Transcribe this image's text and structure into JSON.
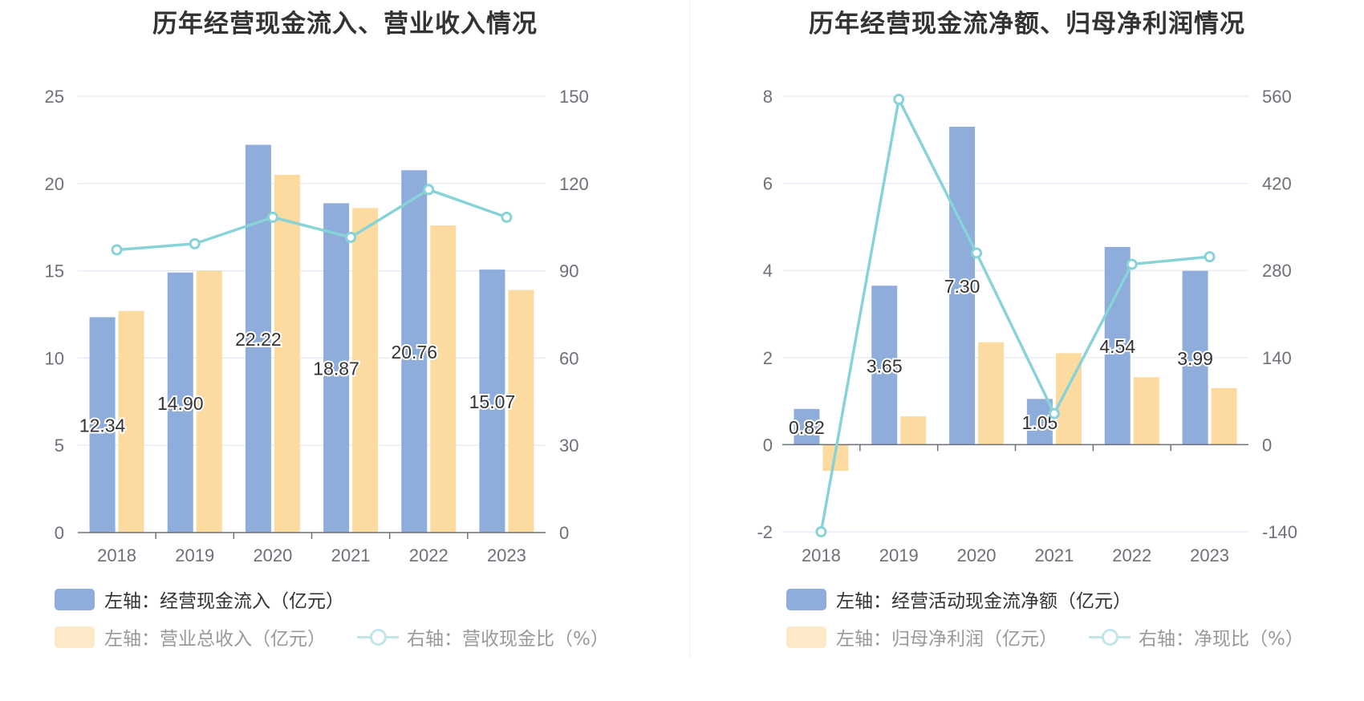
{
  "chart_data": [
    {
      "type": "bar",
      "title": "历年经营现金流入、营业收入情况",
      "categories": [
        "2018",
        "2019",
        "2020",
        "2021",
        "2022",
        "2023"
      ],
      "y_left": {
        "min": 0,
        "max": 25,
        "ticks": [
          "0",
          "5",
          "10",
          "15",
          "20",
          "25"
        ]
      },
      "y_right": {
        "min": 0,
        "max": 150,
        "ticks": [
          "0",
          "30",
          "60",
          "90",
          "120",
          "150"
        ]
      },
      "grid": true,
      "legend_placement": "bottom",
      "series": [
        {
          "name": "左轴：经营现金流入（亿元）",
          "kind": "bar",
          "axis": "left",
          "color": "#8eaddb",
          "values": [
            12.34,
            14.9,
            22.22,
            18.87,
            20.76,
            15.07
          ],
          "labels": [
            "12.34",
            "14.90",
            "22.22",
            "18.87",
            "20.76",
            "15.07"
          ]
        },
        {
          "name": "左轴：营业总收入（亿元）",
          "kind": "bar",
          "axis": "left",
          "color": "#fddba0",
          "values": [
            12.7,
            15.0,
            20.5,
            18.6,
            17.6,
            13.9
          ]
        },
        {
          "name": "右轴：营收现金比（%）",
          "kind": "line",
          "axis": "right",
          "color": "#88d3d8",
          "values": [
            97.2,
            99.3,
            108.4,
            101.5,
            117.9,
            108.4
          ]
        }
      ]
    },
    {
      "type": "bar",
      "title": "历年经营现金流净额、归母净利润情况",
      "categories": [
        "2018",
        "2019",
        "2020",
        "2021",
        "2022",
        "2023"
      ],
      "y_left": {
        "min": -2,
        "max": 8,
        "ticks": [
          "-2",
          "0",
          "2",
          "4",
          "6",
          "8"
        ]
      },
      "y_right": {
        "min": -140,
        "max": 560,
        "ticks": [
          "-140",
          "0",
          "140",
          "280",
          "420",
          "560"
        ]
      },
      "grid": true,
      "legend_placement": "bottom",
      "series": [
        {
          "name": "左轴：经营活动现金流净额（亿元）",
          "kind": "bar",
          "axis": "left",
          "color": "#8eaddb",
          "values": [
            0.82,
            3.65,
            7.3,
            1.05,
            4.54,
            3.99
          ],
          "labels": [
            "0.82",
            "3.65",
            "7.30",
            "1.05",
            "4.54",
            "3.99"
          ]
        },
        {
          "name": "左轴：归母净利润（亿元）",
          "kind": "bar",
          "axis": "left",
          "color": "#fddba0",
          "values": [
            -0.6,
            0.65,
            2.35,
            2.1,
            1.55,
            1.3
          ]
        },
        {
          "name": "右轴：净现比（%）",
          "kind": "line",
          "axis": "right",
          "color": "#88d3d8",
          "values": [
            -140,
            555,
            308,
            50,
            290,
            302
          ]
        }
      ]
    }
  ]
}
